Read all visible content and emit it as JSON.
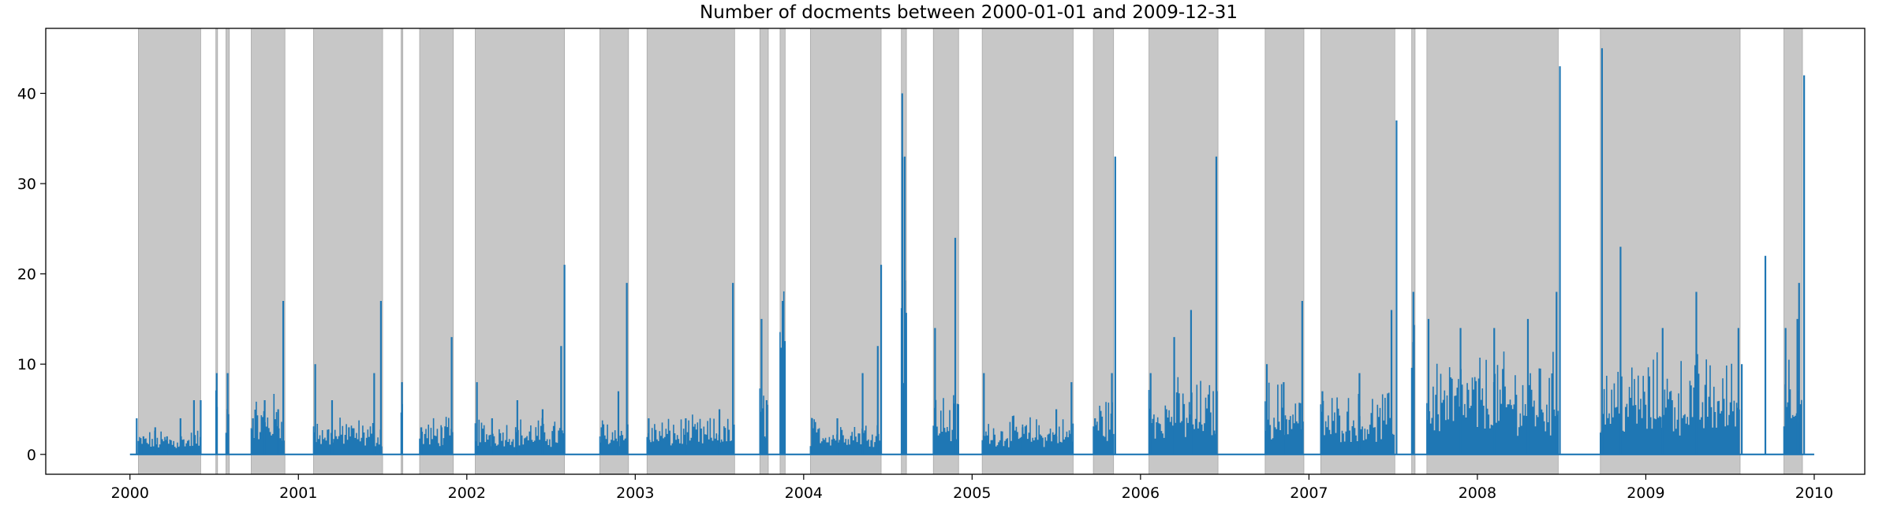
{
  "chart_data": {
    "type": "line",
    "title": "Number of docments between 2000-01-01 and 2009-12-31",
    "xlabel": "",
    "ylabel": "",
    "xlim": [
      1999.5,
      2010.3
    ],
    "ylim": [
      -2.2,
      47.2
    ],
    "x_ticks": [
      2000,
      2001,
      2002,
      2003,
      2004,
      2005,
      2006,
      2007,
      2008,
      2009,
      2010
    ],
    "x_tick_labels": [
      "2000",
      "2001",
      "2002",
      "2003",
      "2004",
      "2005",
      "2006",
      "2007",
      "2008",
      "2009",
      "2010"
    ],
    "y_ticks": [
      0,
      10,
      20,
      30,
      40
    ],
    "y_tick_labels": [
      "0",
      "10",
      "20",
      "30",
      "40"
    ],
    "grid": false,
    "legend": "none",
    "colors": {
      "line": "#1f77b4",
      "shade": "#c7c7c7",
      "shade_edge": "#a8a8a8"
    },
    "shaded_periods": [
      [
        2000.05,
        2000.42
      ],
      [
        2000.51,
        2000.52
      ],
      [
        2000.57,
        2000.59
      ],
      [
        2000.72,
        2000.92
      ],
      [
        2001.09,
        2001.5
      ],
      [
        2001.61,
        2001.62
      ],
      [
        2001.72,
        2001.92
      ],
      [
        2002.05,
        2002.58
      ],
      [
        2002.79,
        2002.96
      ],
      [
        2003.07,
        2003.59
      ],
      [
        2003.74,
        2003.79
      ],
      [
        2003.86,
        2003.89
      ],
      [
        2004.04,
        2004.46
      ],
      [
        2004.58,
        2004.61
      ],
      [
        2004.77,
        2004.92
      ],
      [
        2005.06,
        2005.6
      ],
      [
        2005.72,
        2005.84
      ],
      [
        2006.05,
        2006.46
      ],
      [
        2006.74,
        2006.97
      ],
      [
        2007.07,
        2007.51
      ],
      [
        2007.61,
        2007.63
      ],
      [
        2007.7,
        2008.48
      ],
      [
        2008.73,
        2009.56
      ],
      [
        2009.82,
        2009.93
      ]
    ],
    "series": [
      {
        "active_periods": [
          [
            2000.05,
            2000.42
          ],
          [
            2000.51,
            2000.52
          ],
          [
            2000.57,
            2000.59
          ],
          [
            2000.72,
            2000.92
          ],
          [
            2001.09,
            2001.5
          ],
          [
            2001.61,
            2001.62
          ],
          [
            2001.72,
            2001.92
          ],
          [
            2002.05,
            2002.58
          ],
          [
            2002.79,
            2002.96
          ],
          [
            2003.07,
            2003.59
          ],
          [
            2003.74,
            2003.79
          ],
          [
            2003.86,
            2003.89
          ],
          [
            2004.04,
            2004.46
          ],
          [
            2004.58,
            2004.61
          ],
          [
            2004.77,
            2004.92
          ],
          [
            2005.06,
            2005.6
          ],
          [
            2005.72,
            2005.84
          ],
          [
            2006.05,
            2006.46
          ],
          [
            2006.74,
            2006.97
          ],
          [
            2007.07,
            2007.51
          ],
          [
            2007.61,
            2007.63
          ],
          [
            2007.7,
            2008.48
          ],
          [
            2008.73,
            2009.56
          ],
          [
            2009.82,
            2009.93
          ]
        ],
        "typical_levels": [
          2,
          9,
          7,
          5,
          3,
          8,
          3,
          3,
          3,
          3,
          6,
          16,
          3,
          30,
          5,
          3,
          5,
          6,
          6,
          5,
          18,
          8,
          8,
          10
        ],
        "x": [
          2000.0,
          2000.04,
          2000.08,
          2000.15,
          2000.22,
          2000.3,
          2000.38,
          2000.42,
          2000.43,
          2000.515,
          2000.53,
          2000.58,
          2000.6,
          2000.73,
          2000.8,
          2000.88,
          2000.91,
          2000.93,
          2001.1,
          2001.2,
          2001.3,
          2001.45,
          2001.49,
          2001.51,
          2001.615,
          2001.63,
          2001.73,
          2001.85,
          2001.91,
          2001.93,
          2002.06,
          2002.15,
          2002.3,
          2002.45,
          2002.56,
          2002.58,
          2002.59,
          2002.8,
          2002.9,
          2002.95,
          2002.97,
          2003.08,
          2003.3,
          2003.5,
          2003.58,
          2003.6,
          2003.75,
          2003.78,
          2003.8,
          2003.875,
          2003.9,
          2004.05,
          2004.2,
          2004.35,
          2004.44,
          2004.46,
          2004.47,
          2004.585,
          2004.6,
          2004.62,
          2004.78,
          2004.9,
          2004.92,
          2005.07,
          2005.3,
          2005.5,
          2005.59,
          2005.61,
          2005.73,
          2005.83,
          2005.85,
          2006.06,
          2006.2,
          2006.3,
          2006.45,
          2006.47,
          2006.75,
          2006.85,
          2006.96,
          2006.98,
          2007.08,
          2007.3,
          2007.49,
          2007.52,
          2007.62,
          2007.64,
          2007.71,
          2007.9,
          2008.1,
          2008.3,
          2008.47,
          2008.49,
          2008.74,
          2008.85,
          2009.1,
          2009.3,
          2009.55,
          2009.57,
          2009.7,
          2009.71,
          2009.83,
          2009.9,
          2009.91,
          2009.94,
          2010.0
        ],
        "y": [
          0,
          4,
          2,
          3,
          2,
          4,
          6,
          6,
          0,
          9,
          0,
          9,
          0,
          4,
          6,
          5,
          17,
          0,
          10,
          6,
          3,
          9,
          17,
          0,
          8,
          0,
          3,
          3,
          13,
          0,
          8,
          4,
          6,
          5,
          12,
          21,
          0,
          3,
          7,
          19,
          0,
          4,
          4,
          5,
          19,
          0,
          15,
          6,
          0,
          17,
          0,
          4,
          4,
          9,
          12,
          21,
          0,
          40,
          33,
          0,
          14,
          24,
          0,
          9,
          3,
          5,
          8,
          0,
          4,
          9,
          33,
          9,
          13,
          16,
          33,
          0,
          10,
          8,
          17,
          0,
          7,
          9,
          16,
          37,
          18,
          0,
          15,
          14,
          14,
          15,
          18,
          43,
          45,
          23,
          14,
          18,
          14,
          10,
          0,
          22,
          14,
          15,
          19,
          42,
          0
        ]
      }
    ]
  }
}
